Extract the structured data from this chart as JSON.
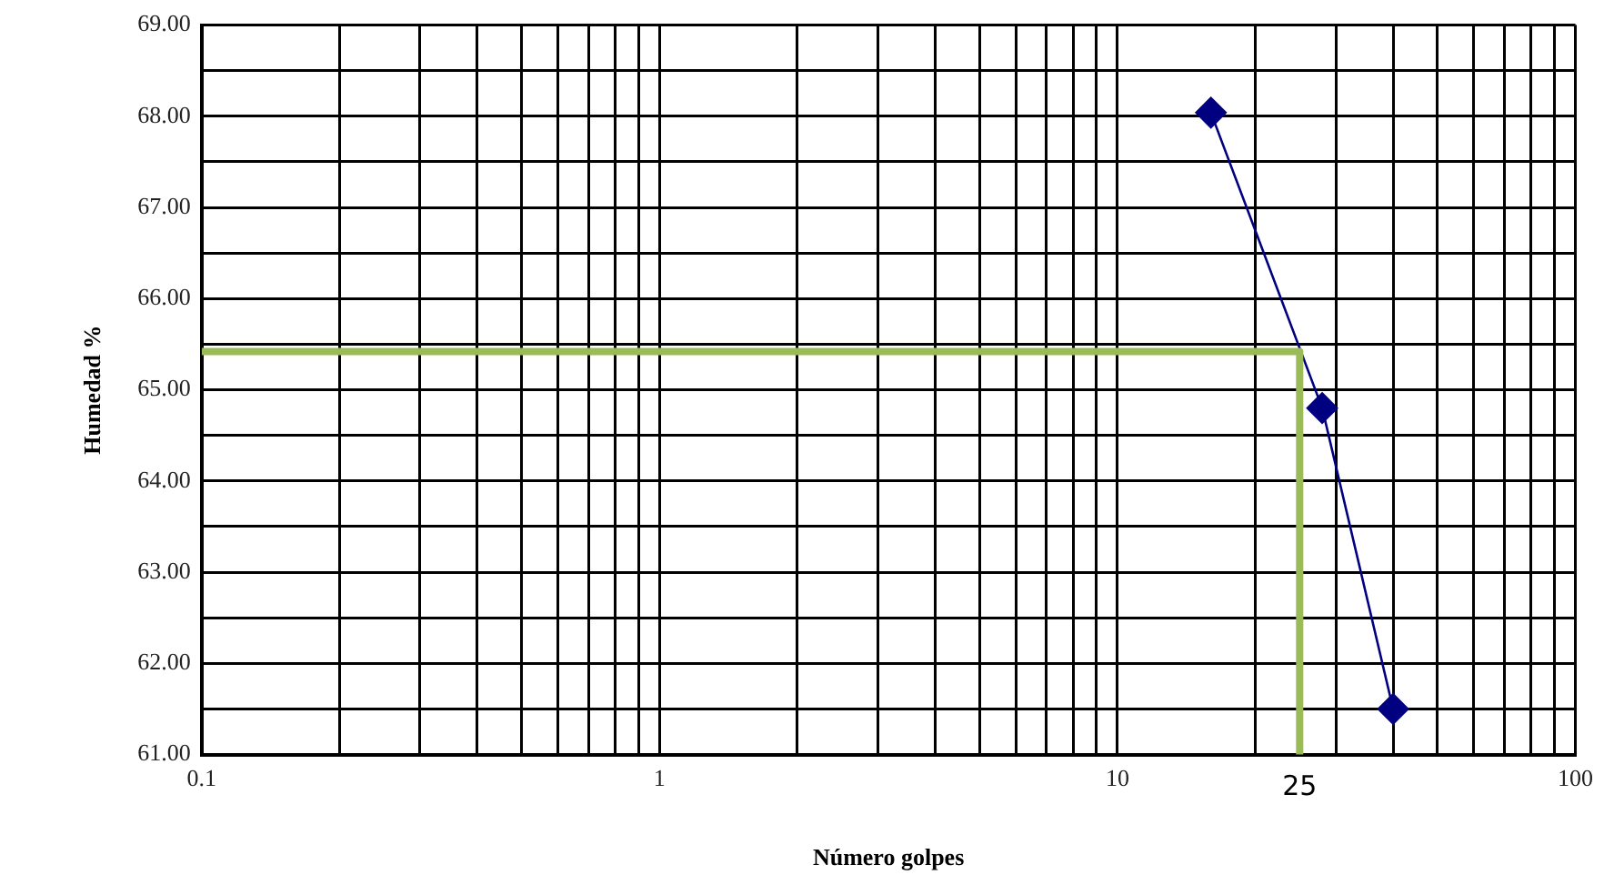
{
  "chart_data": {
    "type": "line",
    "xlabel": "Número golpes",
    "ylabel": "Humedad %",
    "log": "x",
    "grid": true,
    "legend": false,
    "xlim": [
      0.1,
      100
    ],
    "xticks": [
      0.1,
      {
        "value": 0.2,
        "label": null
      },
      {
        "value": 0.3,
        "label": null
      },
      {
        "value": 0.4,
        "label": null
      },
      {
        "value": 0.5,
        "label": null
      },
      {
        "value": 0.6,
        "label": null
      },
      {
        "value": 0.7,
        "label": null
      },
      {
        "value": 0.8,
        "label": null
      },
      {
        "value": 0.9,
        "label": null
      },
      1,
      {
        "value": 2,
        "label": null
      },
      {
        "value": 3,
        "label": null
      },
      {
        "value": 4,
        "label": null
      },
      {
        "value": 5,
        "label": null
      },
      {
        "value": 6,
        "label": null
      },
      {
        "value": 7,
        "label": null
      },
      {
        "value": 8,
        "label": null
      },
      {
        "value": 9,
        "label": null
      },
      10,
      {
        "value": 20,
        "label": null
      },
      {
        "value": 30,
        "label": null
      },
      {
        "value": 40,
        "label": null
      },
      {
        "value": 50,
        "label": null
      },
      {
        "value": 60,
        "label": null
      },
      {
        "value": 70,
        "label": null
      },
      {
        "value": 80,
        "label": null
      },
      {
        "value": 90,
        "label": null
      },
      100
    ],
    "ylim": [
      61,
      69
    ],
    "yticks": [
      {
        "value": 61,
        "label": "61.00"
      },
      {
        "value": 61.5,
        "label": null
      },
      {
        "value": 62,
        "label": "62.00"
      },
      {
        "value": 62.5,
        "label": null
      },
      {
        "value": 63,
        "label": "63.00"
      },
      {
        "value": 63.5,
        "label": null
      },
      {
        "value": 64,
        "label": "64.00"
      },
      {
        "value": 64.5,
        "label": null
      },
      {
        "value": 65,
        "label": "65.00"
      },
      {
        "value": 65.5,
        "label": null
      },
      {
        "value": 66,
        "label": "66.00"
      },
      {
        "value": 66.5,
        "label": null
      },
      {
        "value": 67,
        "label": "67.00"
      },
      {
        "value": 67.5,
        "label": null
      },
      {
        "value": 68,
        "label": "68.00"
      },
      {
        "value": 68.5,
        "label": null
      },
      {
        "value": 69,
        "label": "69.00"
      }
    ],
    "series": [
      {
        "color": "#9bbb59",
        "marker": "none",
        "x": [
          0.1,
          25,
          25
        ],
        "values": [
          65.42,
          65.42,
          61
        ]
      },
      {
        "color": "#000080",
        "marker": "diamond",
        "x": [
          16,
          28,
          40
        ],
        "values": [
          68.04,
          64.8,
          61.5
        ]
      }
    ],
    "annotations": [
      {
        "text": "25",
        "x": 25,
        "y": 61
      }
    ]
  }
}
